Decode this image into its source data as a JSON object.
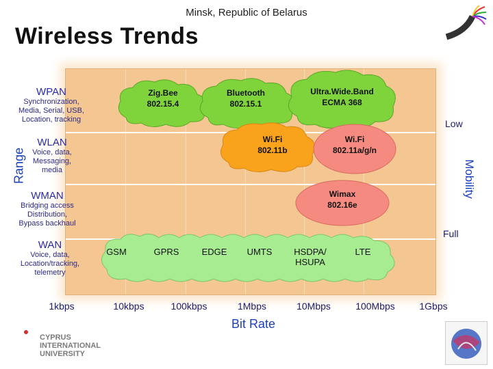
{
  "header": {
    "subtitle": "Minsk, Republic of Belarus",
    "title": "Wireless Trends"
  },
  "axes": {
    "y_label": "Range",
    "x_label": "Bit Rate",
    "mobility_label": "Mobility",
    "mobility_low": "Low",
    "mobility_full": "Full",
    "x_ticks": [
      "1kbps",
      "10kbps",
      "100kbps",
      "1Mbps",
      "10Mbps",
      "100Mbps",
      "1Gbps"
    ]
  },
  "categories": [
    {
      "title": "WPAN",
      "desc": [
        "Synchronization,",
        "Media, Serial, USB,",
        "Location, tracking"
      ]
    },
    {
      "title": "WLAN",
      "desc": [
        "Voice, data,",
        "Messaging,",
        "media"
      ]
    },
    {
      "title": "WMAN",
      "desc": [
        "Bridging  access",
        "Distribution,",
        "Bypass backhaul"
      ]
    },
    {
      "title": "WAN",
      "desc": [
        "Voice, data,",
        "Location/tracking,",
        "telemetry"
      ]
    }
  ],
  "technologies": {
    "zigbee": [
      "Zig.Bee",
      "802.15.4"
    ],
    "bluetooth": [
      "Bluetooth",
      "802.15.1"
    ],
    "uwb": [
      "Ultra.Wide.Band",
      "ECMA 368"
    ],
    "wifi_b": [
      "Wi.Fi",
      "802.11b"
    ],
    "wifi_agn": [
      "Wi.Fi",
      "802.11a/g/n"
    ],
    "wimax": [
      "Wimax",
      "802.16e"
    ],
    "gsm": "GSM",
    "gprs": "GPRS",
    "edge": "EDGE",
    "umts": "UMTS",
    "hsdpa": [
      "HSDPA/",
      "HSUPA"
    ],
    "lte": "LTE"
  },
  "logo": {
    "lines": [
      "CYPRUS",
      "INTERNATIONAL",
      "UNIVERSITY"
    ]
  },
  "colors": {
    "chart_bg": "#f4c691",
    "green_cloud": "#7fd43c",
    "orange_cloud": "#f9a21b",
    "pink_cloud": "#f48a80",
    "wan_cloud": "#a8ec92",
    "label_blue": "#1a3fbf"
  }
}
